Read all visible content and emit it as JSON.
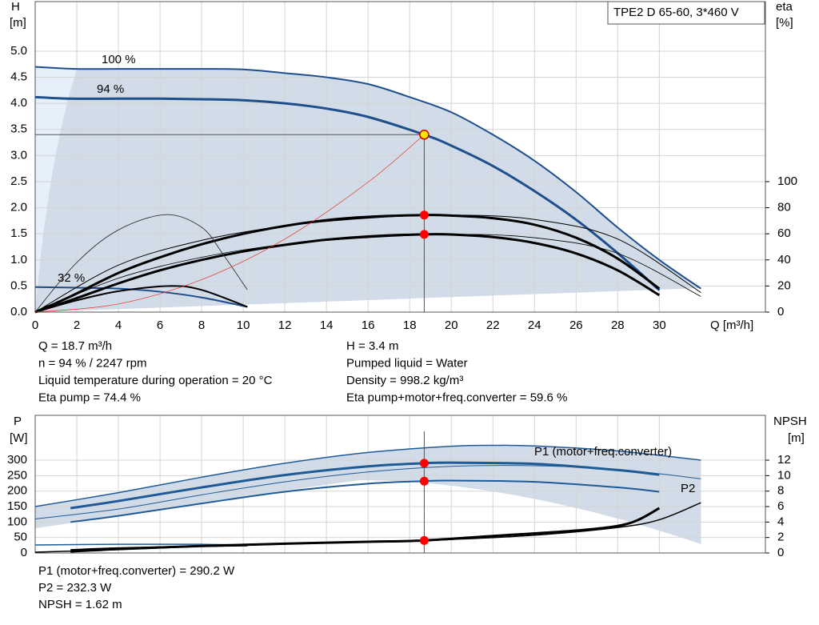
{
  "chart_data": [
    {
      "type": "line",
      "title": "TPE2 D 65-60, 3*460 V",
      "ylabel": "H",
      "yunit": "[m]",
      "y2label": "eta",
      "y2unit": "[%]",
      "xlabel": "Q [m³/h]",
      "xlim": [
        0,
        35.1
      ],
      "xticks": [
        0,
        2,
        4,
        6,
        8,
        10,
        12,
        14,
        16,
        18,
        20,
        22,
        24,
        26,
        28,
        30
      ],
      "ylim": [
        0,
        5.95
      ],
      "yticks": [
        {
          "value": 0,
          "label": "0.0"
        },
        {
          "value": 0.5,
          "label": "0.5"
        },
        {
          "value": 1,
          "label": "1.0"
        },
        {
          "value": 1.5,
          "label": "1.5"
        },
        {
          "value": 2,
          "label": "2.0"
        },
        {
          "value": 2.5,
          "label": "2.5"
        },
        {
          "value": 3,
          "label": "3.0"
        },
        {
          "value": 3.5,
          "label": "3.5"
        },
        {
          "value": 4,
          "label": "4.0"
        },
        {
          "value": 4.5,
          "label": "4.5"
        },
        {
          "value": 5,
          "label": "5.0"
        }
      ],
      "y2lim": [
        0,
        238
      ],
      "y2ticks": [
        0,
        20,
        40,
        60,
        80,
        100
      ],
      "grid": true,
      "series": [
        {
          "name": "100 %",
          "color": "#1f4e8c",
          "x": [
            0,
            2,
            4,
            6,
            8,
            10,
            12,
            14,
            16,
            18,
            20,
            22,
            24,
            26,
            28,
            30,
            32
          ],
          "values": [
            4.7,
            4.66,
            4.66,
            4.66,
            4.66,
            4.65,
            4.58,
            4.5,
            4.37,
            4.12,
            3.83,
            3.4,
            2.9,
            2.3,
            1.62,
            1.0,
            0.45
          ]
        },
        {
          "name": "94 %",
          "color": "#1f4e8c",
          "x": [
            0,
            1.7,
            4,
            6,
            8,
            10,
            12,
            14,
            16,
            18.7,
            20,
            22,
            24,
            26,
            28,
            30
          ],
          "values": [
            4.12,
            4.09,
            4.09,
            4.09,
            4.08,
            4.06,
            4.0,
            3.9,
            3.74,
            3.4,
            3.19,
            2.8,
            2.32,
            1.77,
            1.13,
            0.42
          ]
        },
        {
          "name": "32 %",
          "color": "#1f4e8c",
          "x": [
            0,
            1.7,
            4,
            6,
            8,
            10.2
          ],
          "values": [
            0.48,
            0.47,
            0.45,
            0.39,
            0.28,
            0.1
          ]
        },
        {
          "color": "#000000",
          "axis": "y2",
          "x": [
            0,
            1.7,
            4,
            6,
            8,
            10,
            12,
            14,
            16,
            18.7,
            20,
            22,
            24,
            26,
            28,
            30
          ],
          "values": [
            0,
            12,
            30,
            42,
            52,
            60,
            66,
            70.5,
            73,
            74.4,
            74,
            72,
            67,
            57,
            41,
            18
          ]
        },
        {
          "color": "#000000",
          "axis": "y2",
          "x": [
            0,
            1.7,
            4,
            6,
            8,
            10,
            12,
            14,
            16,
            18.7,
            20,
            22,
            24,
            26,
            28,
            30
          ],
          "values": [
            0,
            9,
            22,
            32,
            40,
            46.5,
            51.5,
            55.5,
            58,
            59.6,
            59.5,
            57.5,
            53,
            45,
            32,
            13
          ]
        },
        {
          "color": "#000000",
          "axis": "y2",
          "x": [
            0,
            4,
            8,
            12,
            16,
            20,
            24,
            28,
            32
          ],
          "values": [
            0,
            36,
            55,
            66,
            72,
            74.4,
            71,
            56,
            15
          ]
        },
        {
          "color": "#000000",
          "axis": "y2",
          "x": [
            0,
            4,
            8,
            12,
            16,
            20,
            24,
            28,
            32
          ],
          "values": [
            0,
            26,
            42,
            52,
            57,
            59.6,
            57,
            45,
            12
          ]
        },
        {
          "color": "#333333",
          "axis": "y2",
          "x": [
            0,
            2,
            4,
            6.3,
            8,
            9,
            10.2
          ],
          "values": [
            0,
            38,
            63,
            74.7,
            65,
            45,
            17
          ]
        },
        {
          "color": "#000000",
          "axis": "y2",
          "x": [
            0,
            2,
            4,
            6.5,
            8,
            10.2
          ],
          "values": [
            0,
            9,
            16,
            20,
            17,
            4
          ]
        },
        {
          "color": "#e8322b",
          "x": [
            0,
            4,
            8,
            12,
            16,
            18.7
          ],
          "values": [
            0,
            0.156,
            0.622,
            1.4,
            2.49,
            3.4
          ]
        }
      ],
      "markers": [
        {
          "x": 18.7,
          "y": 3.4,
          "color": "#ffe600"
        },
        {
          "x": 18.7,
          "y": 74.4,
          "axis": "y2",
          "color": "#ff0000"
        },
        {
          "x": 18.7,
          "y": 59.6,
          "axis": "y2",
          "color": "#ff0000"
        }
      ],
      "info": {
        "left": [
          "Q = 18.7 m³/h",
          "n = 94 % / 2247 rpm",
          "Liquid temperature during operation = 20 °C",
          "Eta pump = 74.4 %"
        ],
        "right": [
          "H = 3.4 m",
          "Pumped liquid = Water",
          "Density = 998.2 kg/m³",
          "Eta pump+motor+freq.converter = 59.6 %"
        ]
      }
    },
    {
      "type": "line",
      "ylabel": "P",
      "yunit": "[W]",
      "y2label": "NPSH",
      "y2unit": "[m]",
      "xlim": [
        0,
        35.1
      ],
      "ylim": [
        0,
        445
      ],
      "yticks": [
        0,
        50,
        100,
        150,
        200,
        250,
        300
      ],
      "y2lim": [
        0,
        17.8
      ],
      "y2ticks": [
        0,
        2,
        4,
        6,
        8,
        10,
        12
      ],
      "grid": true,
      "series": [
        {
          "name": "P1 (motor+freq.converter)",
          "color": "#1f5a96",
          "x": [
            0,
            4,
            8,
            12,
            16,
            20,
            22,
            24,
            28,
            32
          ],
          "values": [
            150,
            195,
            245,
            290,
            325,
            345,
            348,
            346,
            330,
            300
          ]
        },
        {
          "color": "#1f5a96",
          "x": [
            1.7,
            4,
            8,
            12,
            16,
            18.7,
            20,
            24,
            28,
            30
          ],
          "values": [
            145,
            168,
            212,
            252,
            280,
            290.2,
            292,
            288,
            268,
            253
          ]
        },
        {
          "color": "#1f5a96",
          "x": [
            1.7,
            4,
            8,
            12,
            16,
            18.7,
            20,
            24,
            28,
            30
          ],
          "values": [
            100,
            120,
            160,
            198,
            224,
            232.3,
            234,
            230,
            212,
            198
          ]
        },
        {
          "name": "P2",
          "color": "#1f5a96",
          "x": [
            0,
            4,
            8,
            12,
            16,
            20,
            24,
            28,
            32
          ],
          "values": [
            110,
            142,
            188,
            230,
            262,
            280,
            282,
            270,
            240
          ]
        },
        {
          "color": "#1f5a96",
          "x": [
            0,
            4,
            8,
            10.2
          ],
          "values": [
            26,
            28,
            28,
            26
          ]
        },
        {
          "color": "#000000",
          "x": [
            1.7,
            4,
            8,
            10.2
          ],
          "values": [
            10,
            16,
            22,
            24
          ]
        },
        {
          "color": "#000000",
          "axis": "y2",
          "x": [
            1.7,
            4,
            8,
            12,
            16,
            18.7,
            22,
            26,
            28,
            29,
            30
          ],
          "values": [
            0.2,
            0.5,
            0.9,
            1.2,
            1.45,
            1.62,
            2.2,
            2.9,
            3.5,
            4.3,
            5.8
          ]
        },
        {
          "color": "#000000",
          "axis": "y2",
          "x": [
            0,
            4,
            8,
            12,
            16,
            20,
            24,
            28,
            30,
            32
          ],
          "values": [
            0.1,
            0.45,
            0.85,
            1.15,
            1.45,
            1.75,
            2.3,
            3.3,
            4.3,
            6.5
          ]
        }
      ],
      "markers": [
        {
          "x": 18.7,
          "y": 290.2,
          "color": "#ff0000"
        },
        {
          "x": 18.7,
          "y": 232.3,
          "color": "#ff0000"
        },
        {
          "x": 18.7,
          "y": 1.62,
          "axis": "y2",
          "color": "#ff0000"
        }
      ],
      "info": [
        "P1 (motor+freq.converter) = 290.2 W",
        "P2 = 232.3 W",
        "NPSH = 1.62 m"
      ]
    }
  ]
}
